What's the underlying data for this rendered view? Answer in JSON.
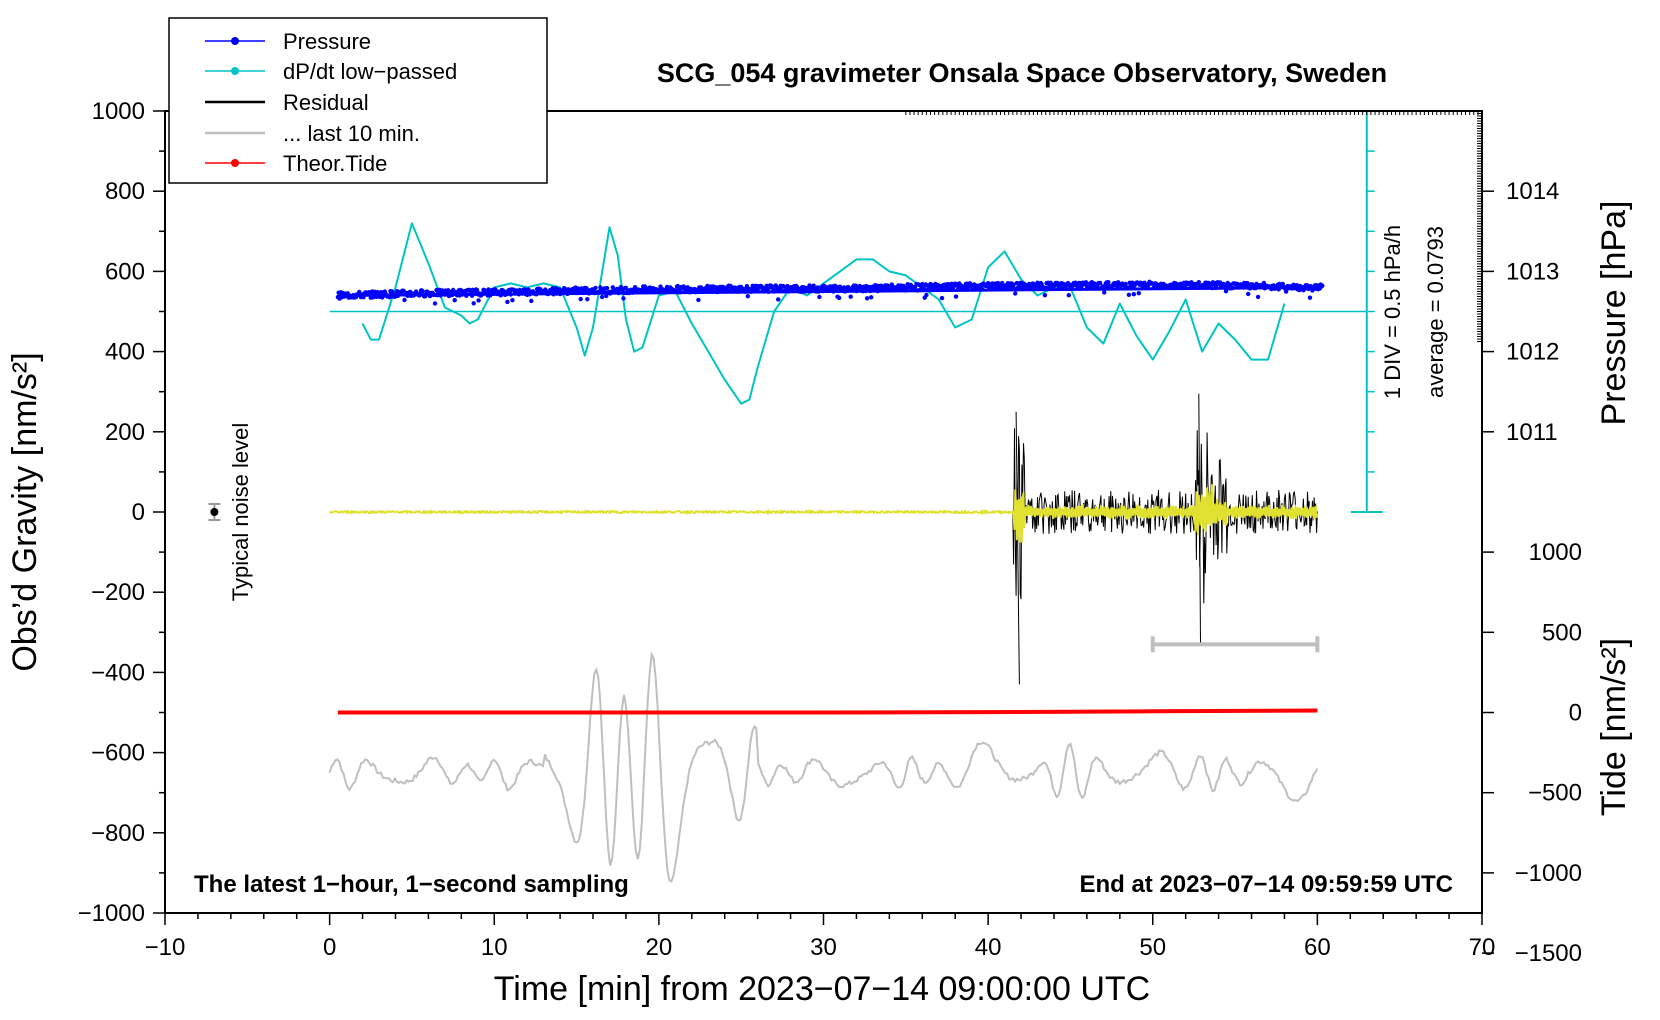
{
  "chart_data": {
    "type": "line",
    "title": "SCG_054 gravimeter Onsala Space Observatory, Sweden",
    "xlabel": "Time [min] from 2023−07−14 09:00:00 UTC",
    "ylabel_left": "Obs’d Gravity [nm/s²]",
    "ylabel_right_top": "Pressure [hPa]",
    "ylabel_right_bottom": "Tide [nm/s²]",
    "xlim": [
      -10,
      70
    ],
    "ylim": [
      -1000,
      1000
    ],
    "x_ticks": [
      "−10",
      "0",
      "10",
      "20",
      "30",
      "40",
      "50",
      "60",
      "70"
    ],
    "y_ticks_left": [
      "1000",
      "800",
      "600",
      "400",
      "200",
      "0",
      "−200",
      "−400",
      "−600",
      "−800",
      "−1000"
    ],
    "pressure_axis": {
      "ticks": [
        "1014",
        "1013",
        "1012",
        "1011"
      ],
      "tick_values": [
        1014,
        1013,
        1012,
        1011
      ],
      "gravity_at_1014": 800,
      "gravity_per_hPa": 200
    },
    "tide_axis": {
      "ticks": [
        "1000",
        "500",
        "0",
        "−500",
        "−1000",
        "−1500"
      ],
      "tick_values": [
        1000,
        500,
        0,
        -500,
        -1000,
        -1500
      ],
      "gravity_at_0": -500,
      "gravity_per_nm": 0.4
    },
    "legend": [
      {
        "label": "Pressure",
        "color": "#0000ff",
        "marker": "dot"
      },
      {
        "label": "dP/dt low−passed",
        "color": "#00c4c4",
        "marker": "dot"
      },
      {
        "label": "Residual",
        "color": "#000000",
        "marker": "none"
      },
      {
        "label": "... last 10 min.",
        "color": "#bfbfbf",
        "marker": "none"
      },
      {
        "label": "Theor.Tide",
        "color": "#ff0000",
        "marker": "dot"
      }
    ],
    "scale_bar": {
      "label": "1 DIV = 0.5 hPa/h",
      "average_label": "average = 0.0793",
      "x": 63,
      "y_from": 0,
      "y_to": 1000,
      "baseline_y": 500
    },
    "noise_marker": {
      "label": "Typical noise level",
      "x": -7,
      "y": 0,
      "err": 20
    },
    "ten_min_bar": {
      "x_from": 50,
      "x_to": 60,
      "y": -330
    },
    "footer_left": "The latest 1−hour, 1−second sampling",
    "footer_right": "End at 2023−07−14 09:59:59 UTC",
    "series": [
      {
        "name": "Pressure",
        "color": "#0000ff",
        "x": [
          0.5,
          5,
          10,
          15,
          20,
          25,
          30,
          35,
          40,
          45,
          50,
          55,
          60
        ],
        "y": [
          540,
          545,
          548,
          552,
          555,
          557,
          557,
          560,
          563,
          565,
          566,
          565,
          560
        ]
      },
      {
        "name": "dP/dt low-passed",
        "color": "#00c4c4",
        "x": [
          2,
          2.5,
          3,
          4,
          5,
          6,
          7,
          8,
          8.5,
          9,
          10,
          11,
          12,
          13,
          14,
          15,
          15.5,
          16,
          17,
          17.5,
          18,
          18.5,
          19,
          20,
          21,
          22,
          23,
          24,
          25,
          25.5,
          26,
          27,
          28,
          29,
          30,
          31,
          32,
          33,
          34,
          35,
          36,
          37,
          38,
          39,
          40,
          41,
          42,
          43,
          44,
          45,
          46,
          47,
          48,
          49,
          50,
          51,
          52,
          53,
          54,
          55,
          56,
          57,
          58
        ],
        "y": [
          470,
          430,
          430,
          560,
          720,
          620,
          510,
          490,
          470,
          480,
          560,
          570,
          560,
          570,
          560,
          460,
          390,
          460,
          710,
          640,
          480,
          400,
          410,
          540,
          550,
          470,
          400,
          330,
          270,
          280,
          360,
          500,
          560,
          540,
          570,
          600,
          630,
          630,
          600,
          590,
          560,
          530,
          460,
          480,
          610,
          650,
          580,
          540,
          560,
          560,
          460,
          420,
          520,
          440,
          380,
          450,
          530,
          400,
          470,
          430,
          380,
          380,
          520
        ]
      },
      {
        "name": "Theor.Tide",
        "color": "#ff0000",
        "x": [
          0.5,
          10,
          20,
          30,
          40,
          50,
          60
        ],
        "y": [
          -500,
          -500,
          -500,
          -500,
          -499,
          -497,
          -495
        ]
      }
    ]
  }
}
